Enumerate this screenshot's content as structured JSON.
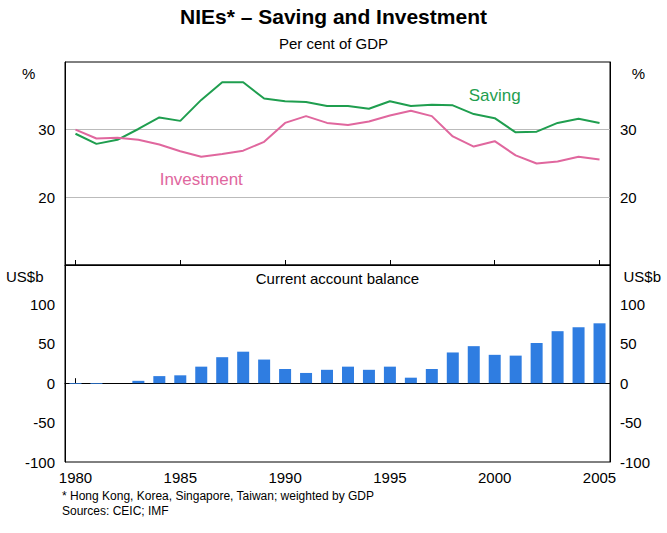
{
  "chart_data": [
    {
      "type": "line",
      "title": "NIEs* – Saving and Investment",
      "subtitle": "Per cent of GDP",
      "y_label": "%",
      "y2_label": "%",
      "x": [
        1980,
        1981,
        1982,
        1983,
        1984,
        1985,
        1986,
        1987,
        1988,
        1989,
        1990,
        1991,
        1992,
        1993,
        1994,
        1995,
        1996,
        1997,
        1998,
        1999,
        2000,
        2001,
        2002,
        2003,
        2004,
        2005
      ],
      "xlim": [
        1979.5,
        2005.5
      ],
      "xticks": [
        1980,
        1985,
        1990,
        1995,
        2000,
        2005
      ],
      "ylim": [
        10,
        40
      ],
      "yticks": [
        20,
        30
      ],
      "y2lim": [
        10,
        40
      ],
      "y2ticks": [
        20,
        30
      ],
      "tick_labels": "y",
      "grid": true,
      "series": [
        {
          "name": "Saving",
          "color": "#1f9e4f",
          "values": [
            29.4,
            27.9,
            28.5,
            30.1,
            31.8,
            31.3,
            34.4,
            37.0,
            37.0,
            34.6,
            34.2,
            34.1,
            33.5,
            33.5,
            33.1,
            34.2,
            33.5,
            33.7,
            33.6,
            32.3,
            31.7,
            29.6,
            29.7,
            31.0,
            31.6,
            31.0
          ]
        },
        {
          "name": "Investment",
          "color": "#e0679e",
          "values": [
            30.0,
            28.7,
            28.8,
            28.5,
            27.8,
            26.8,
            26.0,
            26.4,
            26.9,
            28.2,
            31.0,
            32.0,
            31.0,
            30.7,
            31.2,
            32.1,
            32.8,
            32.0,
            29.0,
            27.5,
            28.3,
            26.2,
            25.0,
            25.3,
            26.0,
            25.6
          ]
        }
      ]
    },
    {
      "type": "bar",
      "title": "Current account balance",
      "y_label": "US$b",
      "y2_label": "US$b",
      "x": [
        1980,
        1981,
        1982,
        1983,
        1984,
        1985,
        1986,
        1987,
        1988,
        1989,
        1990,
        1991,
        1992,
        1993,
        1994,
        1995,
        1996,
        1997,
        1998,
        1999,
        2000,
        2001,
        2002,
        2003,
        2004,
        2005
      ],
      "values": [
        -1,
        -1,
        0,
        3,
        9,
        10,
        21,
        33,
        40,
        30,
        18,
        13,
        17,
        21,
        17,
        21,
        7,
        18,
        39,
        47,
        36,
        35,
        51,
        66,
        71,
        76
      ],
      "color": "#2f7de1",
      "xlim": [
        1979.5,
        2005.5
      ],
      "xticks": [
        1980,
        1985,
        1990,
        1995,
        2000,
        2005
      ],
      "ylim": [
        -100,
        150
      ],
      "yticks": [
        -100,
        -50,
        0,
        50,
        100
      ],
      "y2lim": [
        -100,
        150
      ],
      "y2ticks": [
        -100,
        -50,
        0,
        50,
        100
      ],
      "grid": false,
      "annotations": [
        "* Hong Kong, Korea, Singapore, Taiwan; weighted by GDP",
        "Sources: CEIC; IMF"
      ]
    }
  ]
}
